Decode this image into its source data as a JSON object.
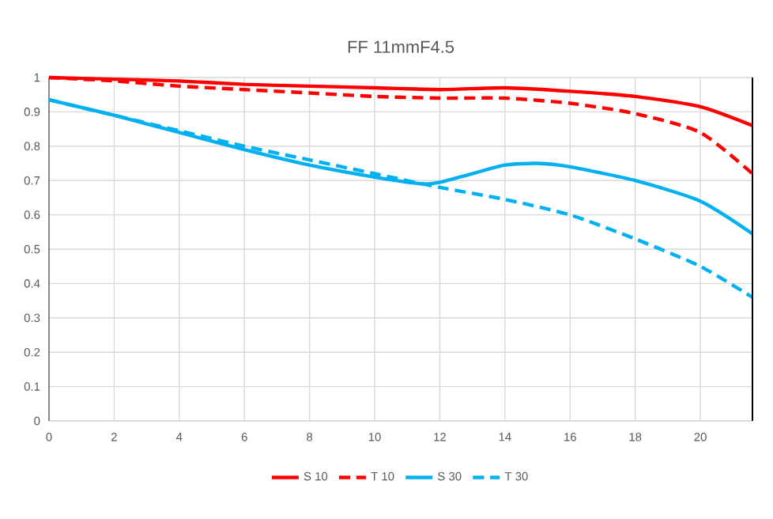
{
  "chart_data": {
    "type": "line",
    "title": "FF 11mmF4.5",
    "xlim": [
      0,
      21.6
    ],
    "xticks": [
      0,
      2,
      4,
      6,
      8,
      10,
      12,
      14,
      16,
      18,
      20
    ],
    "ylim": [
      0,
      1
    ],
    "yticks": [
      0,
      0.1,
      0.2,
      0.3,
      0.4,
      0.5,
      0.6,
      0.7,
      0.8,
      0.9,
      1
    ],
    "grid": true,
    "legend": "bottom",
    "series": [
      {
        "name": "S 10",
        "color": "#ff0000",
        "line_style": "solid",
        "x": [
          0,
          2,
          4,
          6,
          8,
          10,
          12,
          14,
          16,
          18,
          20,
          21.6
        ],
        "values": [
          1,
          0.995,
          0.99,
          0.98,
          0.975,
          0.97,
          0.965,
          0.97,
          0.96,
          0.945,
          0.915,
          0.86
        ]
      },
      {
        "name": "T 10",
        "color": "#ff0000",
        "line_style": "dashed",
        "x": [
          0,
          2,
          4,
          6,
          8,
          10,
          12,
          14,
          16,
          18,
          20,
          21.6
        ],
        "values": [
          1,
          0.99,
          0.975,
          0.965,
          0.955,
          0.945,
          0.94,
          0.94,
          0.925,
          0.895,
          0.84,
          0.72
        ]
      },
      {
        "name": "S 30",
        "color": "#00b0f0",
        "line_style": "solid",
        "x": [
          0,
          2,
          4,
          6,
          8,
          10,
          11.5,
          12,
          13,
          14,
          15,
          16,
          18,
          20,
          21.6
        ],
        "values": [
          0.935,
          0.89,
          0.84,
          0.79,
          0.745,
          0.71,
          0.69,
          0.695,
          0.72,
          0.745,
          0.75,
          0.74,
          0.7,
          0.64,
          0.545
        ]
      },
      {
        "name": "T 30",
        "color": "#00b0f0",
        "line_style": "dashed",
        "x": [
          0,
          2,
          4,
          6,
          8,
          10,
          12,
          14,
          16,
          18,
          20,
          21.6
        ],
        "values": [
          0.935,
          0.89,
          0.845,
          0.8,
          0.76,
          0.72,
          0.68,
          0.645,
          0.6,
          0.53,
          0.45,
          0.36
        ]
      }
    ]
  }
}
